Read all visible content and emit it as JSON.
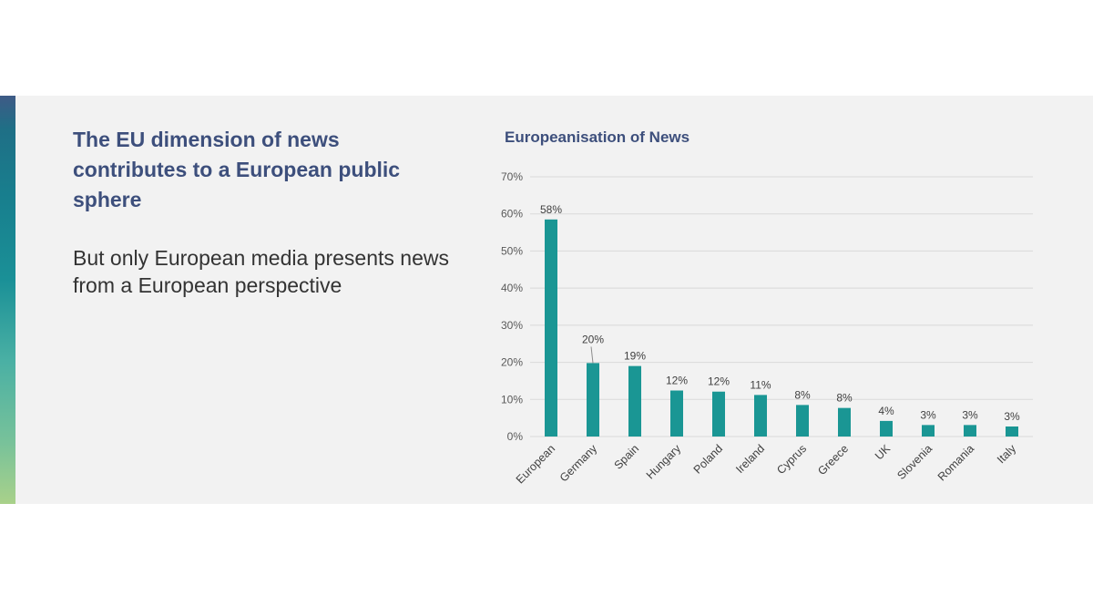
{
  "slide": {
    "headline": "The EU dimension of news contributes to a European public sphere",
    "subline": "But only European media presents news from a European perspective"
  },
  "colors": {
    "bar": "#1a9694",
    "grid": "#d9d9d9",
    "title": "#3d4f7c"
  },
  "chart_data": {
    "type": "bar",
    "title": "Europeanisation of News",
    "categories": [
      "European",
      "Germany",
      "Spain",
      "Hungary",
      "Poland",
      "Ireland",
      "Cyprus",
      "Greece",
      "UK",
      "Slovenia",
      "Romania",
      "Italy"
    ],
    "values": [
      58.5,
      19.8,
      19,
      12.4,
      12.1,
      11.2,
      8.5,
      7.7,
      4.2,
      3.1,
      3.1,
      2.7
    ],
    "data_labels": [
      "58%",
      "20%",
      "19%",
      "12%",
      "12%",
      "11%",
      "8%",
      "8%",
      "4%",
      "3%",
      "3%",
      "3%"
    ],
    "yticks": [
      "0%",
      "10%",
      "20%",
      "30%",
      "40%",
      "50%",
      "60%",
      "70%"
    ],
    "ylim": [
      0,
      70
    ],
    "xlabel": "",
    "ylabel": "",
    "grid": true
  }
}
